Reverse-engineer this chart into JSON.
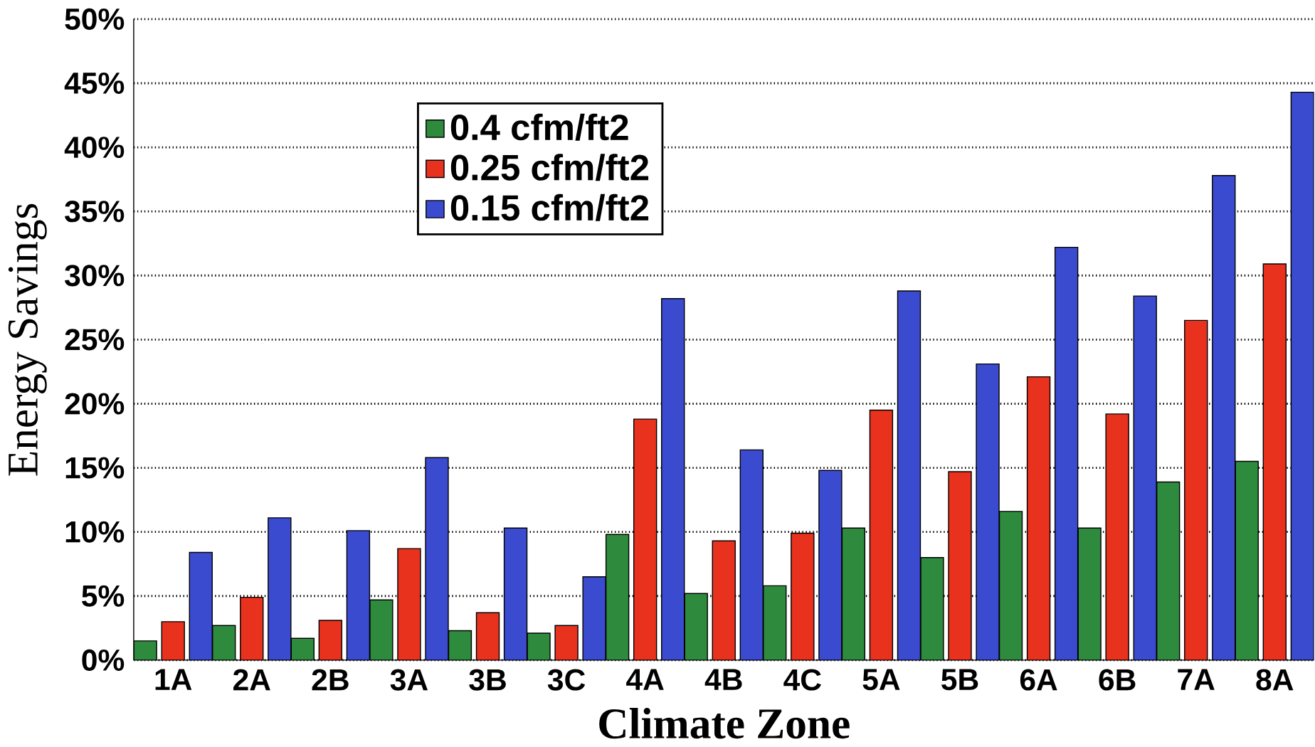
{
  "chart_data": {
    "type": "bar",
    "xlabel": "Climate Zone",
    "ylabel": "Energy Savings",
    "categories": [
      "1A",
      "2A",
      "2B",
      "3A",
      "3B",
      "3C",
      "4A",
      "4B",
      "4C",
      "5A",
      "5B",
      "6A",
      "6B",
      "7A",
      "8A"
    ],
    "series": [
      {
        "name": "0.4 cfm/ft2",
        "color": "#2e8b3e",
        "values": [
          1.5,
          2.7,
          1.7,
          4.7,
          2.3,
          2.1,
          9.8,
          5.2,
          5.8,
          10.3,
          8.0,
          11.6,
          10.3,
          13.9,
          15.5
        ]
      },
      {
        "name": "0.25 cfm/ft2",
        "color": "#e8321e",
        "values": [
          3.0,
          4.9,
          3.1,
          8.7,
          3.7,
          2.7,
          18.8,
          9.3,
          9.9,
          19.5,
          14.7,
          22.1,
          19.2,
          26.5,
          30.9
        ]
      },
      {
        "name": "0.15 cfm/ft2",
        "color": "#3b4bd0",
        "values": [
          8.4,
          11.1,
          10.1,
          15.8,
          10.3,
          6.5,
          28.2,
          16.4,
          14.8,
          28.8,
          23.1,
          32.2,
          28.4,
          37.8,
          44.3
        ]
      }
    ],
    "ylim": [
      0,
      50
    ],
    "yticks": [
      {
        "value": 0,
        "label": "0%"
      },
      {
        "value": 5,
        "label": "5%"
      },
      {
        "value": 10,
        "label": "10%"
      },
      {
        "value": 15,
        "label": "15%"
      },
      {
        "value": 20,
        "label": "20%"
      },
      {
        "value": 25,
        "label": "25%"
      },
      {
        "value": 30,
        "label": "30%"
      },
      {
        "value": 35,
        "label": "35%"
      },
      {
        "value": 40,
        "label": "40%"
      },
      {
        "value": 45,
        "label": "45%"
      },
      {
        "value": 50,
        "label": "50%"
      }
    ],
    "grid": "y",
    "legend": "top left"
  }
}
